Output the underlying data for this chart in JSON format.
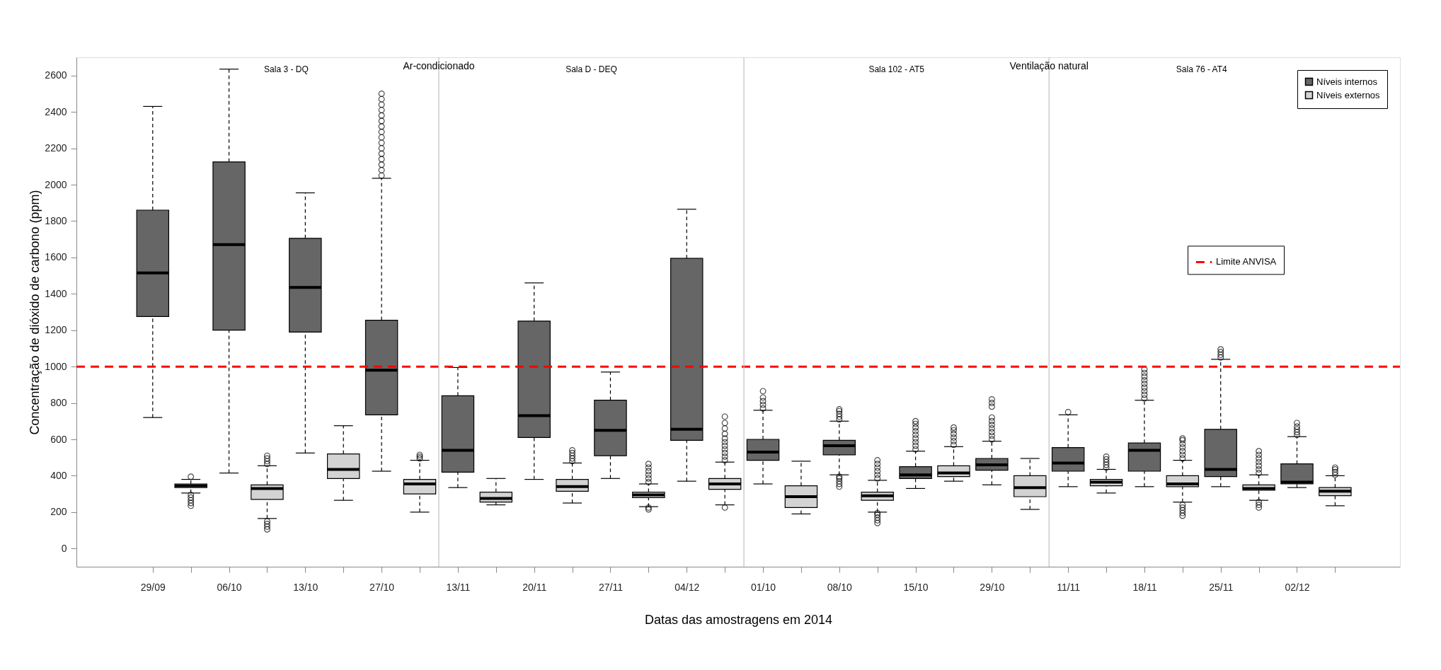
{
  "chart_data": {
    "type": "box",
    "xlabel": "Datas das amostragens em 2014",
    "ylabel": "Concentração de dióxido de carbono (ppm)",
    "categories": [
      "29/09",
      null,
      "06/10",
      null,
      "13/10",
      null,
      "27/10",
      null,
      "13/11",
      null,
      "20/11",
      null,
      "27/11",
      null,
      "04/12",
      null,
      "01/10",
      null,
      "08/10",
      null,
      "15/10",
      null,
      "29/10",
      null,
      "11/11",
      null,
      "18/11",
      null,
      "25/11",
      null,
      "02/12",
      null
    ],
    "ylim": [
      -100,
      2700
    ],
    "yticks": [
      0,
      200,
      400,
      600,
      800,
      1000,
      1200,
      1400,
      1600,
      1800,
      2000,
      2200,
      2400,
      2600
    ],
    "grid": false,
    "legend": "top right",
    "annotations": [
      "Sala 3 - DQ",
      "Ar-condicionado",
      "Sala D - DEQ",
      "Sala 102 - AT5",
      "Ventilação natural",
      "Sala 76 - AT4"
    ],
    "ref_lines": [
      {
        "axis": "y",
        "value": 1000,
        "label": "Limite ANVISA",
        "color": "#ff0000",
        "line_style": "dashed"
      }
    ],
    "series": [
      {
        "name": "Níveis internos",
        "color": "#666666",
        "boxes": [
          {
            "low": 720,
            "q1": 1275,
            "median": 1515,
            "q3": 1860,
            "high": 2430
          },
          null,
          {
            "low": 415,
            "q1": 1200,
            "median": 1670,
            "q3": 2125,
            "high": 2635
          },
          null,
          {
            "low": 525,
            "q1": 1190,
            "median": 1435,
            "q3": 1705,
            "high": 1955
          },
          null,
          {
            "low": 425,
            "q1": 735,
            "median": 980,
            "q3": 1255,
            "high": 2035,
            "outliers": [
              2050,
              2080,
              2110,
              2140,
              2170,
              2200,
              2230,
              2260,
              2290,
              2320,
              2350,
              2380,
              2410,
              2440,
              2470,
              2500
            ]
          },
          null,
          {
            "low": 335,
            "q1": 420,
            "median": 540,
            "q3": 840,
            "high": 995
          },
          null,
          {
            "low": 380,
            "q1": 610,
            "median": 730,
            "q3": 1250,
            "high": 1460
          },
          null,
          {
            "low": 385,
            "q1": 510,
            "median": 650,
            "q3": 815,
            "high": 970
          },
          null,
          {
            "low": 370,
            "q1": 595,
            "median": 655,
            "q3": 1595,
            "high": 1865
          },
          null,
          {
            "low": 355,
            "q1": 485,
            "median": 530,
            "q3": 600,
            "high": 760,
            "outliers": [
              770,
              790,
              810,
              830,
              865
            ]
          },
          null,
          {
            "low": 405,
            "q1": 515,
            "median": 565,
            "q3": 595,
            "high": 700,
            "outliers": [
              340,
              355,
              370,
              385,
              395,
              710,
              725,
              740,
              755,
              765
            ]
          },
          null,
          {
            "low": 330,
            "q1": 385,
            "median": 405,
            "q3": 450,
            "high": 535,
            "outliers": [
              545,
              565,
              585,
              605,
              625,
              645,
              665,
              685,
              700
            ]
          },
          null,
          {
            "low": 350,
            "q1": 430,
            "median": 460,
            "q3": 495,
            "high": 590,
            "outliers": [
              600,
              620,
              640,
              660,
              680,
              700,
              720,
              780,
              800,
              820
            ]
          },
          null,
          {
            "low": 340,
            "q1": 425,
            "median": 470,
            "q3": 555,
            "high": 735,
            "outliers": [
              750
            ]
          },
          null,
          {
            "low": 340,
            "q1": 425,
            "median": 540,
            "q3": 580,
            "high": 815,
            "outliers": [
              825,
              845,
              865,
              885,
              905,
              925,
              945,
              965,
              985
            ]
          },
          null,
          {
            "low": 340,
            "q1": 395,
            "median": 435,
            "q3": 655,
            "high": 1040,
            "outliers": [
              1050,
              1065,
              1080,
              1095
            ]
          },
          null,
          {
            "low": 335,
            "q1": 355,
            "median": 365,
            "q3": 465,
            "high": 615,
            "outliers": [
              625,
              640,
              655,
              670,
              690
            ]
          },
          null
        ]
      },
      {
        "name": "Níveis externos",
        "color": "#d3d3d3",
        "boxes": [
          null,
          {
            "low": 305,
            "q1": 335,
            "median": 345,
            "q3": 355,
            "high": 380,
            "outliers": [
              235,
              250,
              265,
              280,
              295,
              395
            ]
          },
          null,
          {
            "low": 165,
            "q1": 270,
            "median": 330,
            "q3": 350,
            "high": 455,
            "outliers": [
              105,
              120,
              135,
              150,
              465,
              480,
              495,
              510
            ]
          },
          null,
          {
            "low": 265,
            "q1": 385,
            "median": 435,
            "q3": 520,
            "high": 675
          },
          null,
          {
            "low": 200,
            "q1": 300,
            "median": 355,
            "q3": 380,
            "high": 485,
            "outliers": [
              495,
              505,
              515
            ]
          },
          null,
          {
            "low": 240,
            "q1": 255,
            "median": 275,
            "q3": 310,
            "high": 385
          },
          null,
          {
            "low": 250,
            "q1": 315,
            "median": 340,
            "q3": 380,
            "high": 470,
            "outliers": [
              480,
              495,
              510,
              525,
              540
            ]
          },
          null,
          {
            "low": 230,
            "q1": 280,
            "median": 295,
            "q3": 310,
            "high": 355,
            "outliers": [
              215,
              225,
              365,
              385,
              405,
              425,
              445,
              465
            ]
          },
          null,
          {
            "low": 240,
            "q1": 325,
            "median": 355,
            "q3": 385,
            "high": 475,
            "outliers": [
              225,
              485,
              505,
              525,
              545,
              565,
              585,
              605,
              630,
              660,
              690,
              725
            ]
          },
          null,
          {
            "low": 190,
            "q1": 225,
            "median": 285,
            "q3": 345,
            "high": 480
          },
          null,
          {
            "low": 200,
            "q1": 265,
            "median": 290,
            "q3": 310,
            "high": 375,
            "outliers": [
              140,
              155,
              170,
              185,
              195,
              385,
              405,
              425,
              445,
              465,
              485
            ]
          },
          null,
          {
            "low": 370,
            "q1": 395,
            "median": 415,
            "q3": 455,
            "high": 560,
            "outliers": [
              570,
              590,
              610,
              630,
              650,
              665
            ]
          },
          null,
          {
            "low": 215,
            "q1": 285,
            "median": 335,
            "q3": 400,
            "high": 495
          },
          null,
          {
            "low": 305,
            "q1": 345,
            "median": 365,
            "q3": 380,
            "high": 435,
            "outliers": [
              445,
              460,
              475,
              490,
              505
            ]
          },
          null,
          {
            "low": 255,
            "q1": 340,
            "median": 355,
            "q3": 400,
            "high": 485,
            "outliers": [
              180,
              195,
              210,
              225,
              240,
              495,
              515,
              535,
              555,
              575,
              595,
              605
            ]
          },
          null,
          {
            "low": 265,
            "q1": 320,
            "median": 330,
            "q3": 350,
            "high": 405,
            "outliers": [
              225,
              240,
              255,
              415,
              435,
              455,
              475,
              495,
              515,
              535
            ]
          },
          null,
          {
            "low": 235,
            "q1": 290,
            "median": 315,
            "q3": 335,
            "high": 400,
            "outliers": [
              405,
              420,
              435,
              445
            ]
          }
        ]
      }
    ]
  }
}
